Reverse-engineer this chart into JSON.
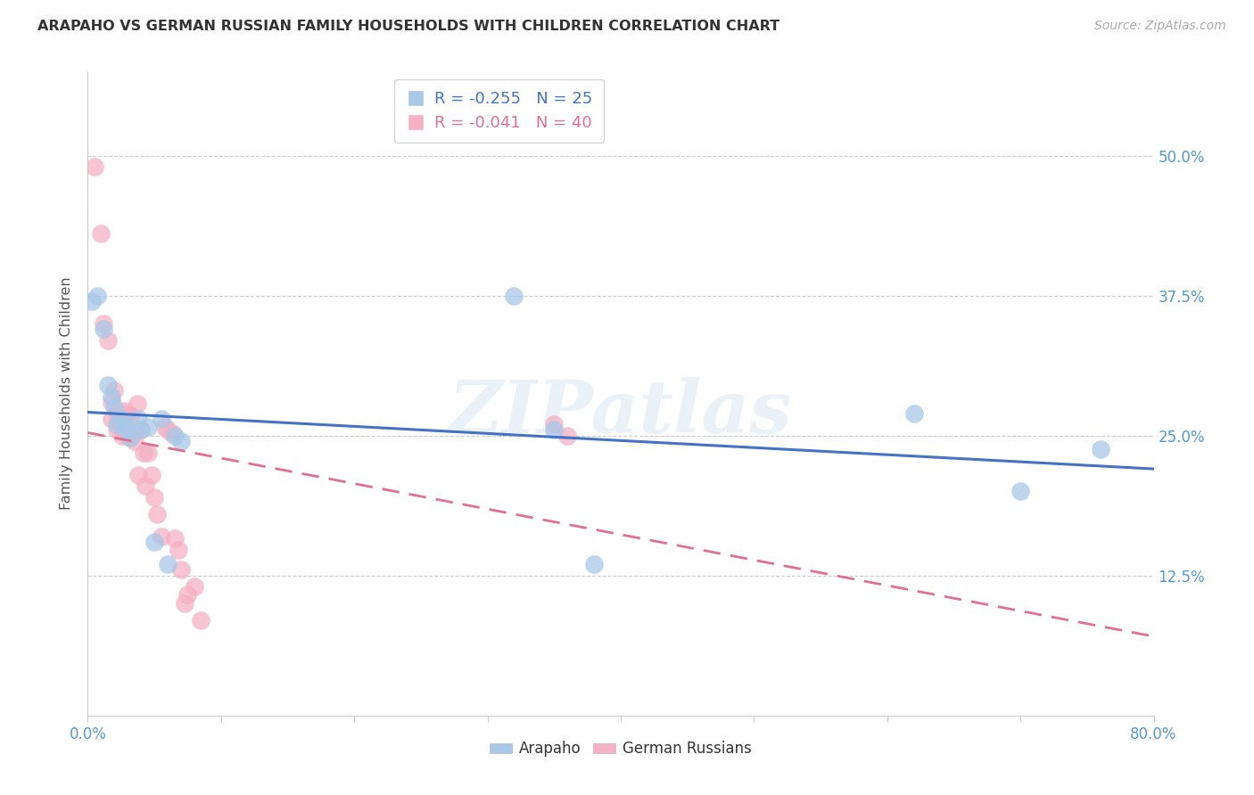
{
  "title": "ARAPAHO VS GERMAN RUSSIAN FAMILY HOUSEHOLDS WITH CHILDREN CORRELATION CHART",
  "source": "Source: ZipAtlas.com",
  "ylabel": "Family Households with Children",
  "xlim": [
    0.0,
    0.8
  ],
  "ylim": [
    0.0,
    0.575
  ],
  "ytick_positions": [
    0.0,
    0.125,
    0.25,
    0.375,
    0.5
  ],
  "ytick_labels": [
    "",
    "12.5%",
    "25.0%",
    "37.5%",
    "50.0%"
  ],
  "xtick_positions": [
    0.0,
    0.1,
    0.2,
    0.3,
    0.4,
    0.5,
    0.6,
    0.7,
    0.8
  ],
  "xtick_labels": [
    "0.0%",
    "",
    "",
    "",
    "",
    "",
    "",
    "",
    "80.0%"
  ],
  "arapaho_R": -0.255,
  "arapaho_N": 25,
  "german_russian_R": -0.041,
  "german_russian_N": 40,
  "arapaho_color": "#a8c8e8",
  "german_russian_color": "#f5b0c5",
  "arapaho_line_color": "#4472c4",
  "german_russian_line_color": "#e07090",
  "watermark": "ZIPatlas",
  "arapaho_x": [
    0.003,
    0.007,
    0.012,
    0.015,
    0.018,
    0.02,
    0.022,
    0.025,
    0.028,
    0.03,
    0.032,
    0.038,
    0.04,
    0.045,
    0.05,
    0.055,
    0.06,
    0.065,
    0.07,
    0.32,
    0.35,
    0.38,
    0.62,
    0.7,
    0.76
  ],
  "arapaho_y": [
    0.37,
    0.375,
    0.345,
    0.295,
    0.285,
    0.275,
    0.26,
    0.265,
    0.258,
    0.255,
    0.248,
    0.265,
    0.255,
    0.258,
    0.155,
    0.265,
    0.135,
    0.25,
    0.245,
    0.375,
    0.255,
    0.135,
    0.27,
    0.2,
    0.238
  ],
  "german_russian_x": [
    0.005,
    0.01,
    0.012,
    0.015,
    0.018,
    0.018,
    0.02,
    0.022,
    0.022,
    0.024,
    0.025,
    0.026,
    0.028,
    0.03,
    0.03,
    0.032,
    0.034,
    0.035,
    0.037,
    0.038,
    0.04,
    0.042,
    0.043,
    0.045,
    0.048,
    0.05,
    0.052,
    0.055,
    0.058,
    0.06,
    0.063,
    0.065,
    0.068,
    0.07,
    0.073,
    0.075,
    0.08,
    0.085,
    0.35,
    0.36
  ],
  "german_russian_y": [
    0.49,
    0.43,
    0.35,
    0.335,
    0.28,
    0.265,
    0.29,
    0.27,
    0.255,
    0.265,
    0.258,
    0.25,
    0.272,
    0.27,
    0.25,
    0.268,
    0.252,
    0.245,
    0.278,
    0.215,
    0.255,
    0.235,
    0.205,
    0.235,
    0.215,
    0.195,
    0.18,
    0.16,
    0.258,
    0.255,
    0.252,
    0.158,
    0.148,
    0.13,
    0.1,
    0.108,
    0.115,
    0.085,
    0.26,
    0.25
  ]
}
